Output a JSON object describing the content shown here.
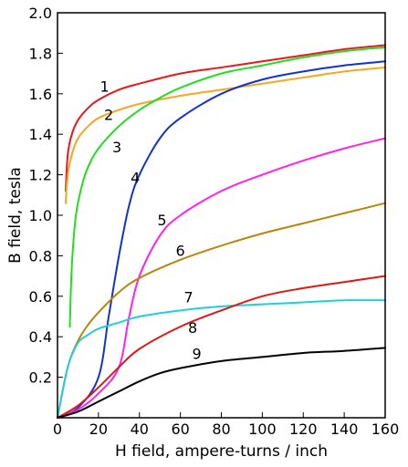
{
  "chart_data": {
    "type": "line",
    "title": "",
    "xlabel": "H field, ampere-turns / inch",
    "ylabel": "B field, tesla",
    "xlim": [
      0,
      160
    ],
    "ylim": [
      0,
      2.0
    ],
    "x_ticks": [
      "0",
      "20",
      "40",
      "60",
      "80",
      "100",
      "120",
      "140",
      "160"
    ],
    "y_ticks": [
      "0.2",
      "0.4",
      "0.6",
      "0.8",
      "1.0",
      "1.2",
      "1.4",
      "1.6",
      "1.8",
      "2.0"
    ],
    "grid": false,
    "legend": "none",
    "series": [
      {
        "label": "1",
        "color": "#e8171c",
        "label_at": [
          23,
          1.61
        ],
        "points": [
          [
            4,
            1.12
          ],
          [
            5,
            1.3
          ],
          [
            7,
            1.4
          ],
          [
            10,
            1.47
          ],
          [
            15,
            1.53
          ],
          [
            20,
            1.57
          ],
          [
            30,
            1.62
          ],
          [
            40,
            1.65
          ],
          [
            60,
            1.7
          ],
          [
            80,
            1.73
          ],
          [
            100,
            1.76
          ],
          [
            120,
            1.79
          ],
          [
            140,
            1.82
          ],
          [
            160,
            1.84
          ]
        ]
      },
      {
        "label": "2",
        "color": "#f5a623",
        "label_at": [
          25,
          1.47
        ],
        "points": [
          [
            4,
            1.06
          ],
          [
            5,
            1.2
          ],
          [
            7,
            1.3
          ],
          [
            10,
            1.38
          ],
          [
            15,
            1.44
          ],
          [
            20,
            1.48
          ],
          [
            30,
            1.52
          ],
          [
            40,
            1.55
          ],
          [
            60,
            1.59
          ],
          [
            80,
            1.62
          ],
          [
            100,
            1.65
          ],
          [
            120,
            1.68
          ],
          [
            140,
            1.71
          ],
          [
            160,
            1.73
          ]
        ]
      },
      {
        "label": "3",
        "color": "#22dd22",
        "label_at": [
          29,
          1.31
        ],
        "points": [
          [
            6,
            0.45
          ],
          [
            7,
            0.75
          ],
          [
            9,
            1.0
          ],
          [
            12,
            1.15
          ],
          [
            15,
            1.24
          ],
          [
            20,
            1.33
          ],
          [
            30,
            1.44
          ],
          [
            40,
            1.52
          ],
          [
            50,
            1.58
          ],
          [
            60,
            1.63
          ],
          [
            80,
            1.7
          ],
          [
            100,
            1.74
          ],
          [
            120,
            1.78
          ],
          [
            140,
            1.81
          ],
          [
            160,
            1.83
          ]
        ]
      },
      {
        "label": "4",
        "color": "#1133cc",
        "label_at": [
          38,
          1.16
        ],
        "points": [
          [
            0,
            0
          ],
          [
            10,
            0.05
          ],
          [
            20,
            0.2
          ],
          [
            25,
            0.5
          ],
          [
            30,
            0.8
          ],
          [
            35,
            1.05
          ],
          [
            40,
            1.2
          ],
          [
            50,
            1.38
          ],
          [
            60,
            1.48
          ],
          [
            80,
            1.6
          ],
          [
            100,
            1.67
          ],
          [
            120,
            1.71
          ],
          [
            140,
            1.74
          ],
          [
            160,
            1.76
          ]
        ]
      },
      {
        "label": "5",
        "color": "#ff22ee",
        "label_at": [
          51,
          0.95
        ],
        "points": [
          [
            0,
            0
          ],
          [
            10,
            0.04
          ],
          [
            20,
            0.12
          ],
          [
            30,
            0.25
          ],
          [
            35,
            0.5
          ],
          [
            40,
            0.7
          ],
          [
            50,
            0.9
          ],
          [
            60,
            1.0
          ],
          [
            80,
            1.12
          ],
          [
            100,
            1.2
          ],
          [
            120,
            1.27
          ],
          [
            140,
            1.33
          ],
          [
            160,
            1.38
          ]
        ]
      },
      {
        "label": "6",
        "color": "#b8860b",
        "label_at": [
          60,
          0.8
        ],
        "points": [
          [
            0,
            0
          ],
          [
            5,
            0.25
          ],
          [
            10,
            0.38
          ],
          [
            15,
            0.46
          ],
          [
            20,
            0.52
          ],
          [
            30,
            0.62
          ],
          [
            40,
            0.69
          ],
          [
            60,
            0.78
          ],
          [
            80,
            0.85
          ],
          [
            100,
            0.91
          ],
          [
            120,
            0.96
          ],
          [
            140,
            1.01
          ],
          [
            160,
            1.06
          ]
        ]
      },
      {
        "label": "7",
        "color": "#22cedd",
        "label_at": [
          64,
          0.57
        ],
        "points": [
          [
            0,
            0
          ],
          [
            5,
            0.25
          ],
          [
            10,
            0.37
          ],
          [
            15,
            0.41
          ],
          [
            20,
            0.44
          ],
          [
            30,
            0.47
          ],
          [
            40,
            0.5
          ],
          [
            60,
            0.53
          ],
          [
            80,
            0.55
          ],
          [
            100,
            0.56
          ],
          [
            120,
            0.57
          ],
          [
            140,
            0.58
          ],
          [
            160,
            0.58
          ]
        ]
      },
      {
        "label": "8",
        "color": "#dd1818",
        "label_at": [
          66,
          0.42
        ],
        "points": [
          [
            0,
            0
          ],
          [
            10,
            0.06
          ],
          [
            20,
            0.15
          ],
          [
            30,
            0.25
          ],
          [
            40,
            0.34
          ],
          [
            60,
            0.45
          ],
          [
            80,
            0.53
          ],
          [
            100,
            0.6
          ],
          [
            120,
            0.64
          ],
          [
            140,
            0.67
          ],
          [
            160,
            0.7
          ]
        ]
      },
      {
        "label": "9",
        "color": "#000000",
        "label_at": [
          68,
          0.29
        ],
        "points": [
          [
            0,
            0
          ],
          [
            10,
            0.03
          ],
          [
            20,
            0.08
          ],
          [
            30,
            0.13
          ],
          [
            40,
            0.18
          ],
          [
            50,
            0.22
          ],
          [
            60,
            0.245
          ],
          [
            80,
            0.28
          ],
          [
            100,
            0.3
          ],
          [
            120,
            0.32
          ],
          [
            140,
            0.33
          ],
          [
            160,
            0.345
          ]
        ]
      }
    ]
  }
}
